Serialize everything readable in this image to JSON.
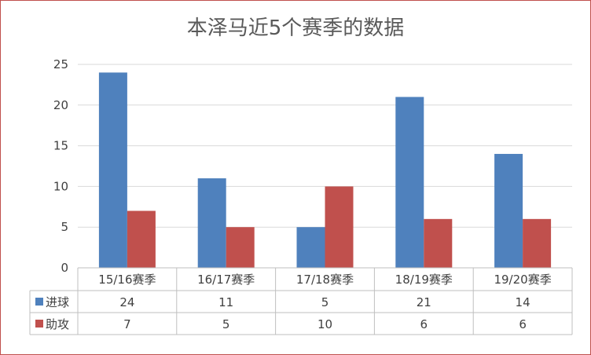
{
  "chart_data": {
    "type": "bar",
    "title": "本泽马近5个赛季的数据",
    "categories": [
      "15/16赛季",
      "16/17赛季",
      "17/18赛季",
      "18/19赛季",
      "19/20赛季"
    ],
    "series": [
      {
        "name": "进球",
        "values": [
          24,
          11,
          5,
          21,
          14
        ],
        "color": "#4f81bd"
      },
      {
        "name": "助攻",
        "values": [
          7,
          5,
          10,
          6,
          6
        ],
        "color": "#c0504d"
      }
    ],
    "ylim": [
      0,
      25
    ],
    "yticks": [
      0,
      5,
      10,
      15,
      20,
      25
    ],
    "grid": true,
    "legend": "data-table"
  }
}
